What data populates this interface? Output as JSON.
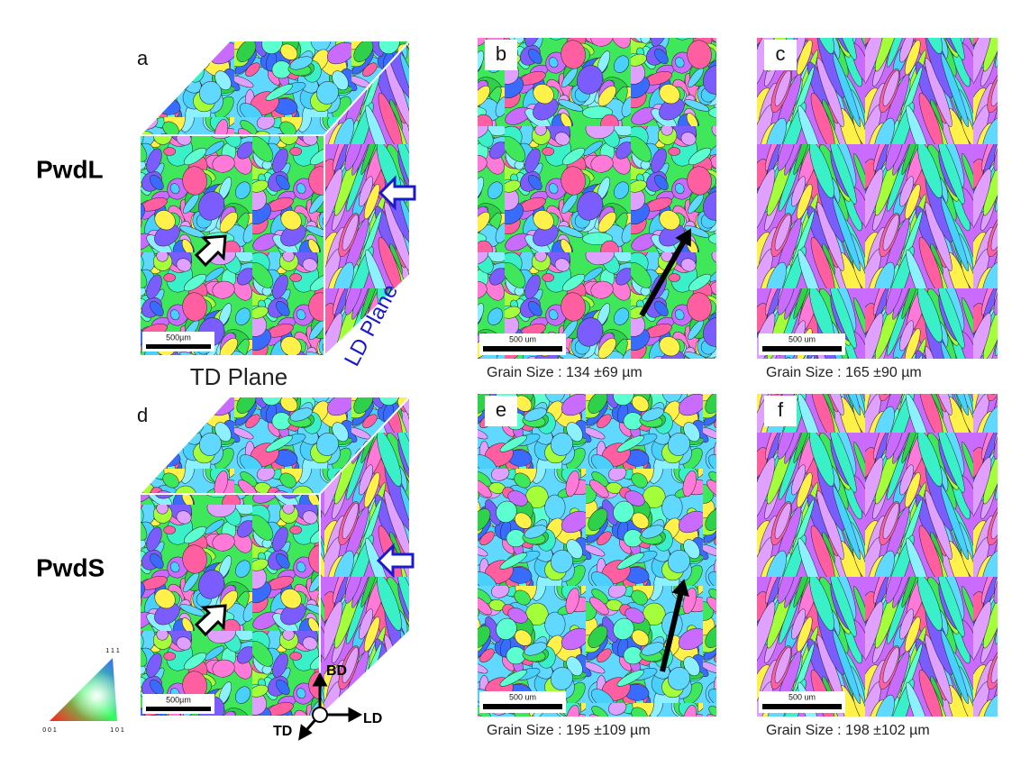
{
  "row_labels": [
    "PwdL",
    "PwdS"
  ],
  "panels": [
    {
      "letter": "a",
      "scale_bar": "500µm"
    },
    {
      "letter": "b",
      "scale_bar": "500 um",
      "caption": "Grain Size : 134 ±69 µm"
    },
    {
      "letter": "c",
      "scale_bar": "500 um",
      "caption": "Grain Size : 165 ±90 µm"
    },
    {
      "letter": "d",
      "scale_bar": "500µm"
    },
    {
      "letter": "e",
      "scale_bar": "500 um",
      "caption": "Grain Size : 195 ±109 µm"
    },
    {
      "letter": "f",
      "scale_bar": "500 um",
      "caption": "Grain Size : 198 ±102 µm"
    }
  ],
  "td_plane": "TD Plane",
  "ld_plane": "LD Plane",
  "axes": {
    "bd": "BD",
    "td": "TD",
    "ld": "LD"
  },
  "ipf": {
    "top": "1 1 1",
    "left": "0 0 1",
    "right": "1 0 1"
  }
}
